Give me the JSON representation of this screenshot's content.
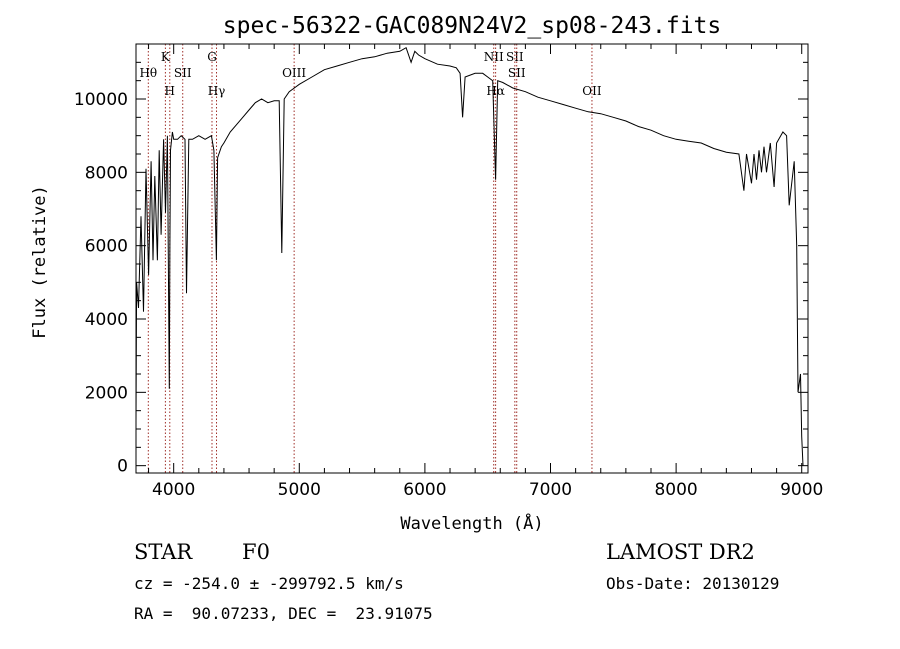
{
  "chart_data": {
    "type": "line",
    "title": "spec-56322-GAC089N24V2_sp08-243.fits",
    "xlabel": "Wavelength (Å)",
    "ylabel": "Flux (relative)",
    "xlim": [
      3700,
      9050
    ],
    "ylim": [
      -200,
      11500
    ],
    "x_ticks": [
      4000,
      5000,
      6000,
      7000,
      8000,
      9000
    ],
    "x_tick_labels": [
      "4000",
      "5000",
      "6000",
      "7000",
      "8000",
      "9000"
    ],
    "y_ticks": [
      0,
      2000,
      4000,
      6000,
      8000,
      10000
    ],
    "y_tick_labels": [
      "0",
      "2000",
      "4000",
      "6000",
      "8000",
      "10000"
    ],
    "series": [
      {
        "x": [
          3700,
          3705,
          3720,
          3740,
          3760,
          3780,
          3800,
          3820,
          3835,
          3850,
          3870,
          3885,
          3900,
          3920,
          3935,
          3950,
          3965,
          3970,
          3975,
          3990,
          4000,
          4030,
          4060,
          4090,
          4102,
          4120,
          4150,
          4200,
          4250,
          4300,
          4320,
          4340,
          4350,
          4380,
          4400,
          4450,
          4500,
          4550,
          4600,
          4650,
          4700,
          4750,
          4800,
          4840,
          4861,
          4880,
          4920,
          4960,
          5000,
          5100,
          5200,
          5300,
          5400,
          5500,
          5600,
          5700,
          5800,
          5850,
          5890,
          5920,
          5950,
          6000,
          6100,
          6200,
          6250,
          6280,
          6300,
          6320,
          6400,
          6460,
          6500,
          6540,
          6563,
          6580,
          6620,
          6700,
          6800,
          6900,
          7000,
          7100,
          7200,
          7300,
          7400,
          7500,
          7600,
          7700,
          7800,
          7900,
          8000,
          8100,
          8200,
          8300,
          8400,
          8500,
          8540,
          8560,
          8600,
          8620,
          8640,
          8660,
          8680,
          8700,
          8720,
          8750,
          8780,
          8800,
          8850,
          8880,
          8900,
          8940,
          8960,
          8970,
          8990,
          9000,
          9010
        ],
        "y": [
          1200,
          5000,
          4300,
          6800,
          4200,
          8100,
          5200,
          8300,
          5600,
          7900,
          5600,
          8600,
          6300,
          8900,
          6900,
          9000,
          2100,
          6000,
          8600,
          9100,
          8900,
          8900,
          9000,
          8900,
          4700,
          8900,
          8900,
          9000,
          8900,
          9000,
          8600,
          5600,
          8400,
          8700,
          8800,
          9100,
          9300,
          9500,
          9700,
          9900,
          10000,
          9900,
          9950,
          9950,
          5800,
          10000,
          10200,
          10300,
          10400,
          10600,
          10800,
          10900,
          11000,
          11100,
          11150,
          11250,
          11300,
          11400,
          11000,
          11300,
          11200,
          11100,
          10950,
          10900,
          10850,
          10700,
          9500,
          10600,
          10700,
          10700,
          10600,
          10500,
          7800,
          10500,
          10450,
          10300,
          10200,
          10050,
          9950,
          9850,
          9750,
          9650,
          9600,
          9500,
          9400,
          9250,
          9150,
          9000,
          8900,
          8850,
          8800,
          8650,
          8550,
          8500,
          7500,
          8500,
          7700,
          8500,
          7800,
          8600,
          8000,
          8700,
          8000,
          8800,
          7600,
          8800,
          9100,
          9000,
          7100,
          8300,
          6000,
          2000,
          2500,
          800,
          0
        ]
      }
    ],
    "annotations": [
      {
        "label": "Hθ",
        "x": 3798,
        "row": 2
      },
      {
        "label": "K",
        "x": 3934,
        "row": 1
      },
      {
        "label": "H",
        "x": 3969,
        "row": 3
      },
      {
        "label": "SII",
        "x": 4072,
        "row": 2
      },
      {
        "label": "G",
        "x": 4305,
        "row": 1
      },
      {
        "label": "Hγ",
        "x": 4341,
        "row": 3
      },
      {
        "label": "OIII",
        "x": 4959,
        "row": 2
      },
      {
        "label": "NII",
        "x": 6548,
        "row": 1
      },
      {
        "label": "Hα",
        "x": 6563,
        "row": 3
      },
      {
        "label": "SII",
        "x": 6716,
        "row": 1
      },
      {
        "label": "SII",
        "x": 6731,
        "row": 2
      },
      {
        "label": "OII",
        "x": 7330,
        "row": 3
      }
    ],
    "grid": false,
    "line_color": "#000000",
    "marker_color": "#a0302a"
  },
  "info": {
    "class_label": "STAR",
    "subclass_label": "F0",
    "survey_label": "LAMOST DR2",
    "cz_text": "cz = -254.0 ± -299792.5 km/s",
    "obs_date_text": "Obs-Date: 20130129",
    "radec_text": "RA =  90.07233, DEC =  23.91075"
  }
}
